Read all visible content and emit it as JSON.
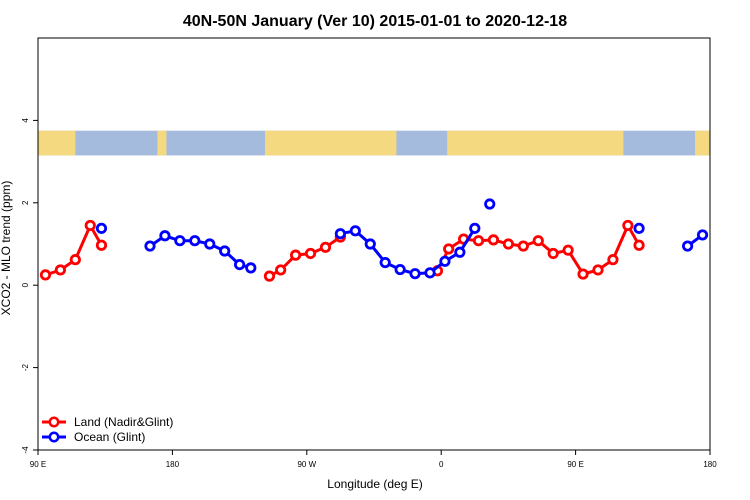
{
  "chart_data": {
    "type": "line",
    "title": "40N-50N January (Ver 10)   2015-01-01 to 2020-12-18",
    "xlabel": "Longitude (deg E)",
    "ylabel": "XCO2 - MLO trend (ppm)",
    "xlim": [
      90,
      540
    ],
    "ylim": [
      -4,
      6
    ],
    "x_ticks": [
      {
        "value": 90,
        "label": "90 E"
      },
      {
        "value": 180,
        "label": "180"
      },
      {
        "value": 270,
        "label": "90 W"
      },
      {
        "value": 360,
        "label": "0"
      },
      {
        "value": 450,
        "label": "90 E"
      },
      {
        "value": 540,
        "label": "180"
      }
    ],
    "y_ticks": [
      {
        "value": -4,
        "label": "-4"
      },
      {
        "value": -2,
        "label": "-2"
      },
      {
        "value": 0,
        "label": "0"
      },
      {
        "value": 2,
        "label": "2"
      },
      {
        "value": 4,
        "label": "4"
      }
    ],
    "map_strip": {
      "y_bottom": 3.15,
      "y_top": 3.75,
      "ocean_color": "#a5bbdd",
      "land_color": "#f5d980"
    },
    "series": [
      {
        "name": "Land (Nadir&Glint)",
        "color": "#ff0000",
        "segments": [
          [
            [
              95,
              0.25
            ],
            [
              105,
              0.37
            ],
            [
              115,
              0.62
            ],
            [
              125,
              1.45
            ],
            [
              132.5,
              0.97
            ]
          ],
          [
            [
              245,
              0.22
            ],
            [
              252.5,
              0.37
            ],
            [
              262.5,
              0.73
            ],
            [
              272.5,
              0.77
            ],
            [
              282.5,
              0.92
            ],
            [
              292.5,
              1.17
            ]
          ],
          [
            [
              357.5,
              0.35
            ],
            [
              365,
              0.88
            ],
            [
              375,
              1.12
            ],
            [
              385,
              1.08
            ],
            [
              395,
              1.1
            ],
            [
              405,
              1.0
            ],
            [
              415,
              0.95
            ],
            [
              425,
              1.08
            ],
            [
              435,
              0.77
            ],
            [
              445,
              0.85
            ],
            [
              455,
              0.27
            ],
            [
              465,
              0.37
            ],
            [
              475,
              0.62
            ],
            [
              485,
              1.45
            ],
            [
              492.5,
              0.97
            ]
          ]
        ]
      },
      {
        "name": "Ocean (Glint)",
        "color": "#0000ff",
        "segments": [
          [
            [
              132.5,
              1.38
            ]
          ],
          [
            [
              165,
              0.95
            ],
            [
              175,
              1.2
            ],
            [
              185,
              1.08
            ],
            [
              195,
              1.08
            ],
            [
              205,
              1.0
            ],
            [
              215,
              0.83
            ],
            [
              225,
              0.5
            ],
            [
              232.5,
              0.42
            ]
          ],
          [
            [
              292.5,
              1.25
            ],
            [
              302.5,
              1.32
            ],
            [
              312.5,
              1.0
            ],
            [
              322.5,
              0.55
            ],
            [
              332.5,
              0.38
            ],
            [
              342.5,
              0.28
            ],
            [
              352.5,
              0.3
            ],
            [
              362.5,
              0.58
            ],
            [
              372.5,
              0.8
            ],
            [
              382.5,
              1.38
            ]
          ],
          [
            [
              392.5,
              1.97
            ]
          ],
          [
            [
              492.5,
              1.38
            ]
          ],
          [
            [
              525,
              0.95
            ],
            [
              535,
              1.22
            ]
          ]
        ]
      }
    ],
    "legend": {
      "position": "bottom-left"
    }
  }
}
